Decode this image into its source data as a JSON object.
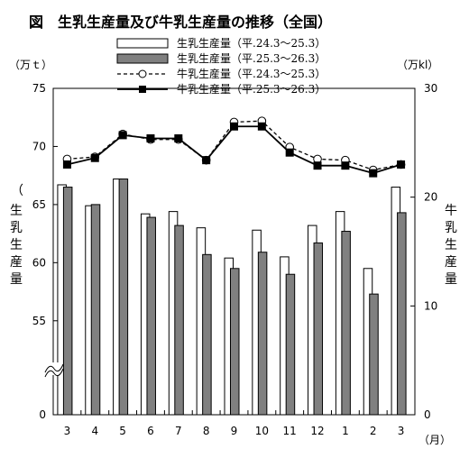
{
  "chart_data": {
    "type": "bar+line",
    "title": "図　生乳生産量及び牛乳生産量の推移（全国）",
    "left_axis": {
      "unit": "（万ｔ）",
      "label_chars": [
        "生",
        "乳",
        "生",
        "産",
        "量"
      ],
      "ticks": [
        "75",
        "70",
        "65",
        "60",
        "55",
        "0"
      ],
      "range": [
        52.5,
        75
      ],
      "break": true
    },
    "right_axis": {
      "unit": "（万kl）",
      "label_chars": [
        "牛",
        "乳",
        "生",
        "産",
        "量"
      ],
      "ticks": [
        "30",
        "20",
        "10",
        "0"
      ],
      "range": [
        0,
        30
      ]
    },
    "categories": [
      "3",
      "4",
      "5",
      "6",
      "7",
      "8",
      "9",
      "10",
      "11",
      "12",
      "1",
      "2",
      "3"
    ],
    "x_unit": "（月）",
    "series": [
      {
        "name": "生乳生産量（平.24.3～25.3）",
        "type": "bar",
        "axis": "left",
        "fill": "#ffffff",
        "values": [
          66.7,
          64.9,
          67.2,
          64.2,
          64.4,
          63.0,
          60.4,
          62.8,
          60.5,
          63.2,
          64.4,
          59.5,
          66.5
        ]
      },
      {
        "name": "生乳生産量（平.25.3～26.3）",
        "type": "bar",
        "axis": "left",
        "fill": "#808080",
        "values": [
          66.5,
          65.0,
          67.2,
          63.9,
          63.2,
          60.7,
          59.5,
          60.9,
          59.0,
          61.7,
          62.7,
          57.3,
          64.3
        ]
      },
      {
        "name": "牛乳生産量（平.24.3～25.3）",
        "type": "line",
        "axis": "right",
        "dash": true,
        "marker": "circle-open",
        "values": [
          23.5,
          23.7,
          25.8,
          25.3,
          25.3,
          23.4,
          26.9,
          27.0,
          24.6,
          23.5,
          23.4,
          22.5,
          23.0
        ]
      },
      {
        "name": "牛乳生産量（平.25.3～26.3）",
        "type": "line",
        "axis": "right",
        "dash": false,
        "marker": "square-filled",
        "values": [
          23.0,
          23.6,
          25.7,
          25.4,
          25.4,
          23.4,
          26.5,
          26.5,
          24.1,
          22.9,
          22.9,
          22.2,
          23.0
        ]
      }
    ],
    "grid": false,
    "legend_position": "top-center"
  },
  "colors": {
    "dark_bar": "#808080",
    "light_bar": "#ffffff",
    "line": "#000000"
  }
}
